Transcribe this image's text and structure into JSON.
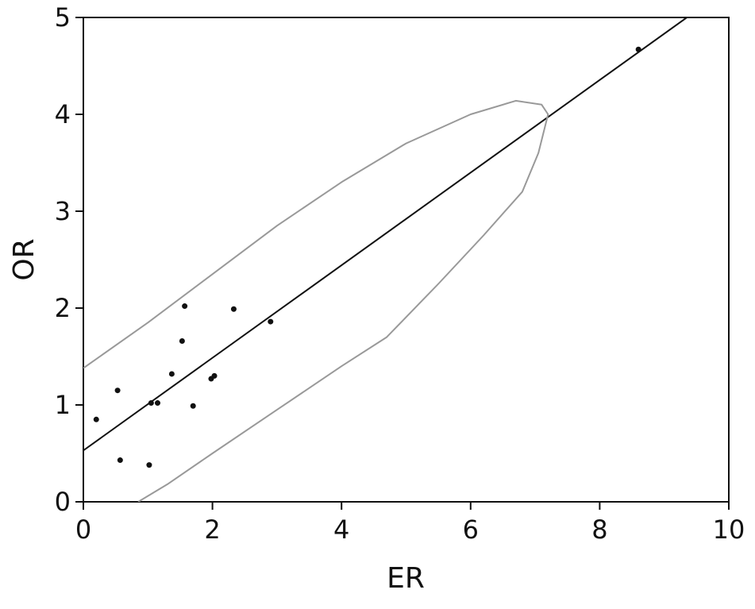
{
  "chart_data": {
    "type": "scatter",
    "xlabel": "ER",
    "ylabel": "OR",
    "xlim": [
      0,
      10
    ],
    "ylim": [
      0,
      5
    ],
    "xticks": [
      0,
      2,
      4,
      6,
      8,
      10
    ],
    "yticks": [
      0,
      1,
      2,
      3,
      4,
      5
    ],
    "series": [
      {
        "type": "scatter",
        "color": "#111111",
        "x": [
          0.2,
          0.53,
          0.57,
          1.02,
          1.05,
          1.15,
          1.37,
          1.53,
          1.57,
          1.7,
          1.98,
          2.03,
          2.33,
          2.9,
          8.6
        ],
        "values": [
          0.85,
          1.15,
          0.43,
          0.38,
          1.02,
          1.02,
          1.32,
          1.66,
          2.02,
          0.99,
          1.27,
          1.3,
          1.99,
          1.86,
          4.67
        ]
      },
      {
        "type": "line",
        "color": "#111111",
        "x": [
          0,
          9.35
        ],
        "values": [
          0.53,
          5
        ]
      },
      {
        "type": "line",
        "color": "#999999",
        "x": [
          0,
          1,
          2,
          3,
          4,
          5,
          6,
          6.7,
          7.1,
          7.2,
          7.05,
          6.8,
          6.2,
          5.5,
          4.7,
          4,
          3,
          2,
          1.3,
          0.85
        ],
        "values": [
          1.38,
          1.85,
          2.35,
          2.85,
          3.3,
          3.7,
          4.0,
          4.14,
          4.1,
          4.0,
          3.6,
          3.2,
          2.75,
          2.25,
          1.7,
          1.4,
          0.95,
          0.5,
          0.18,
          0
        ]
      }
    ]
  }
}
